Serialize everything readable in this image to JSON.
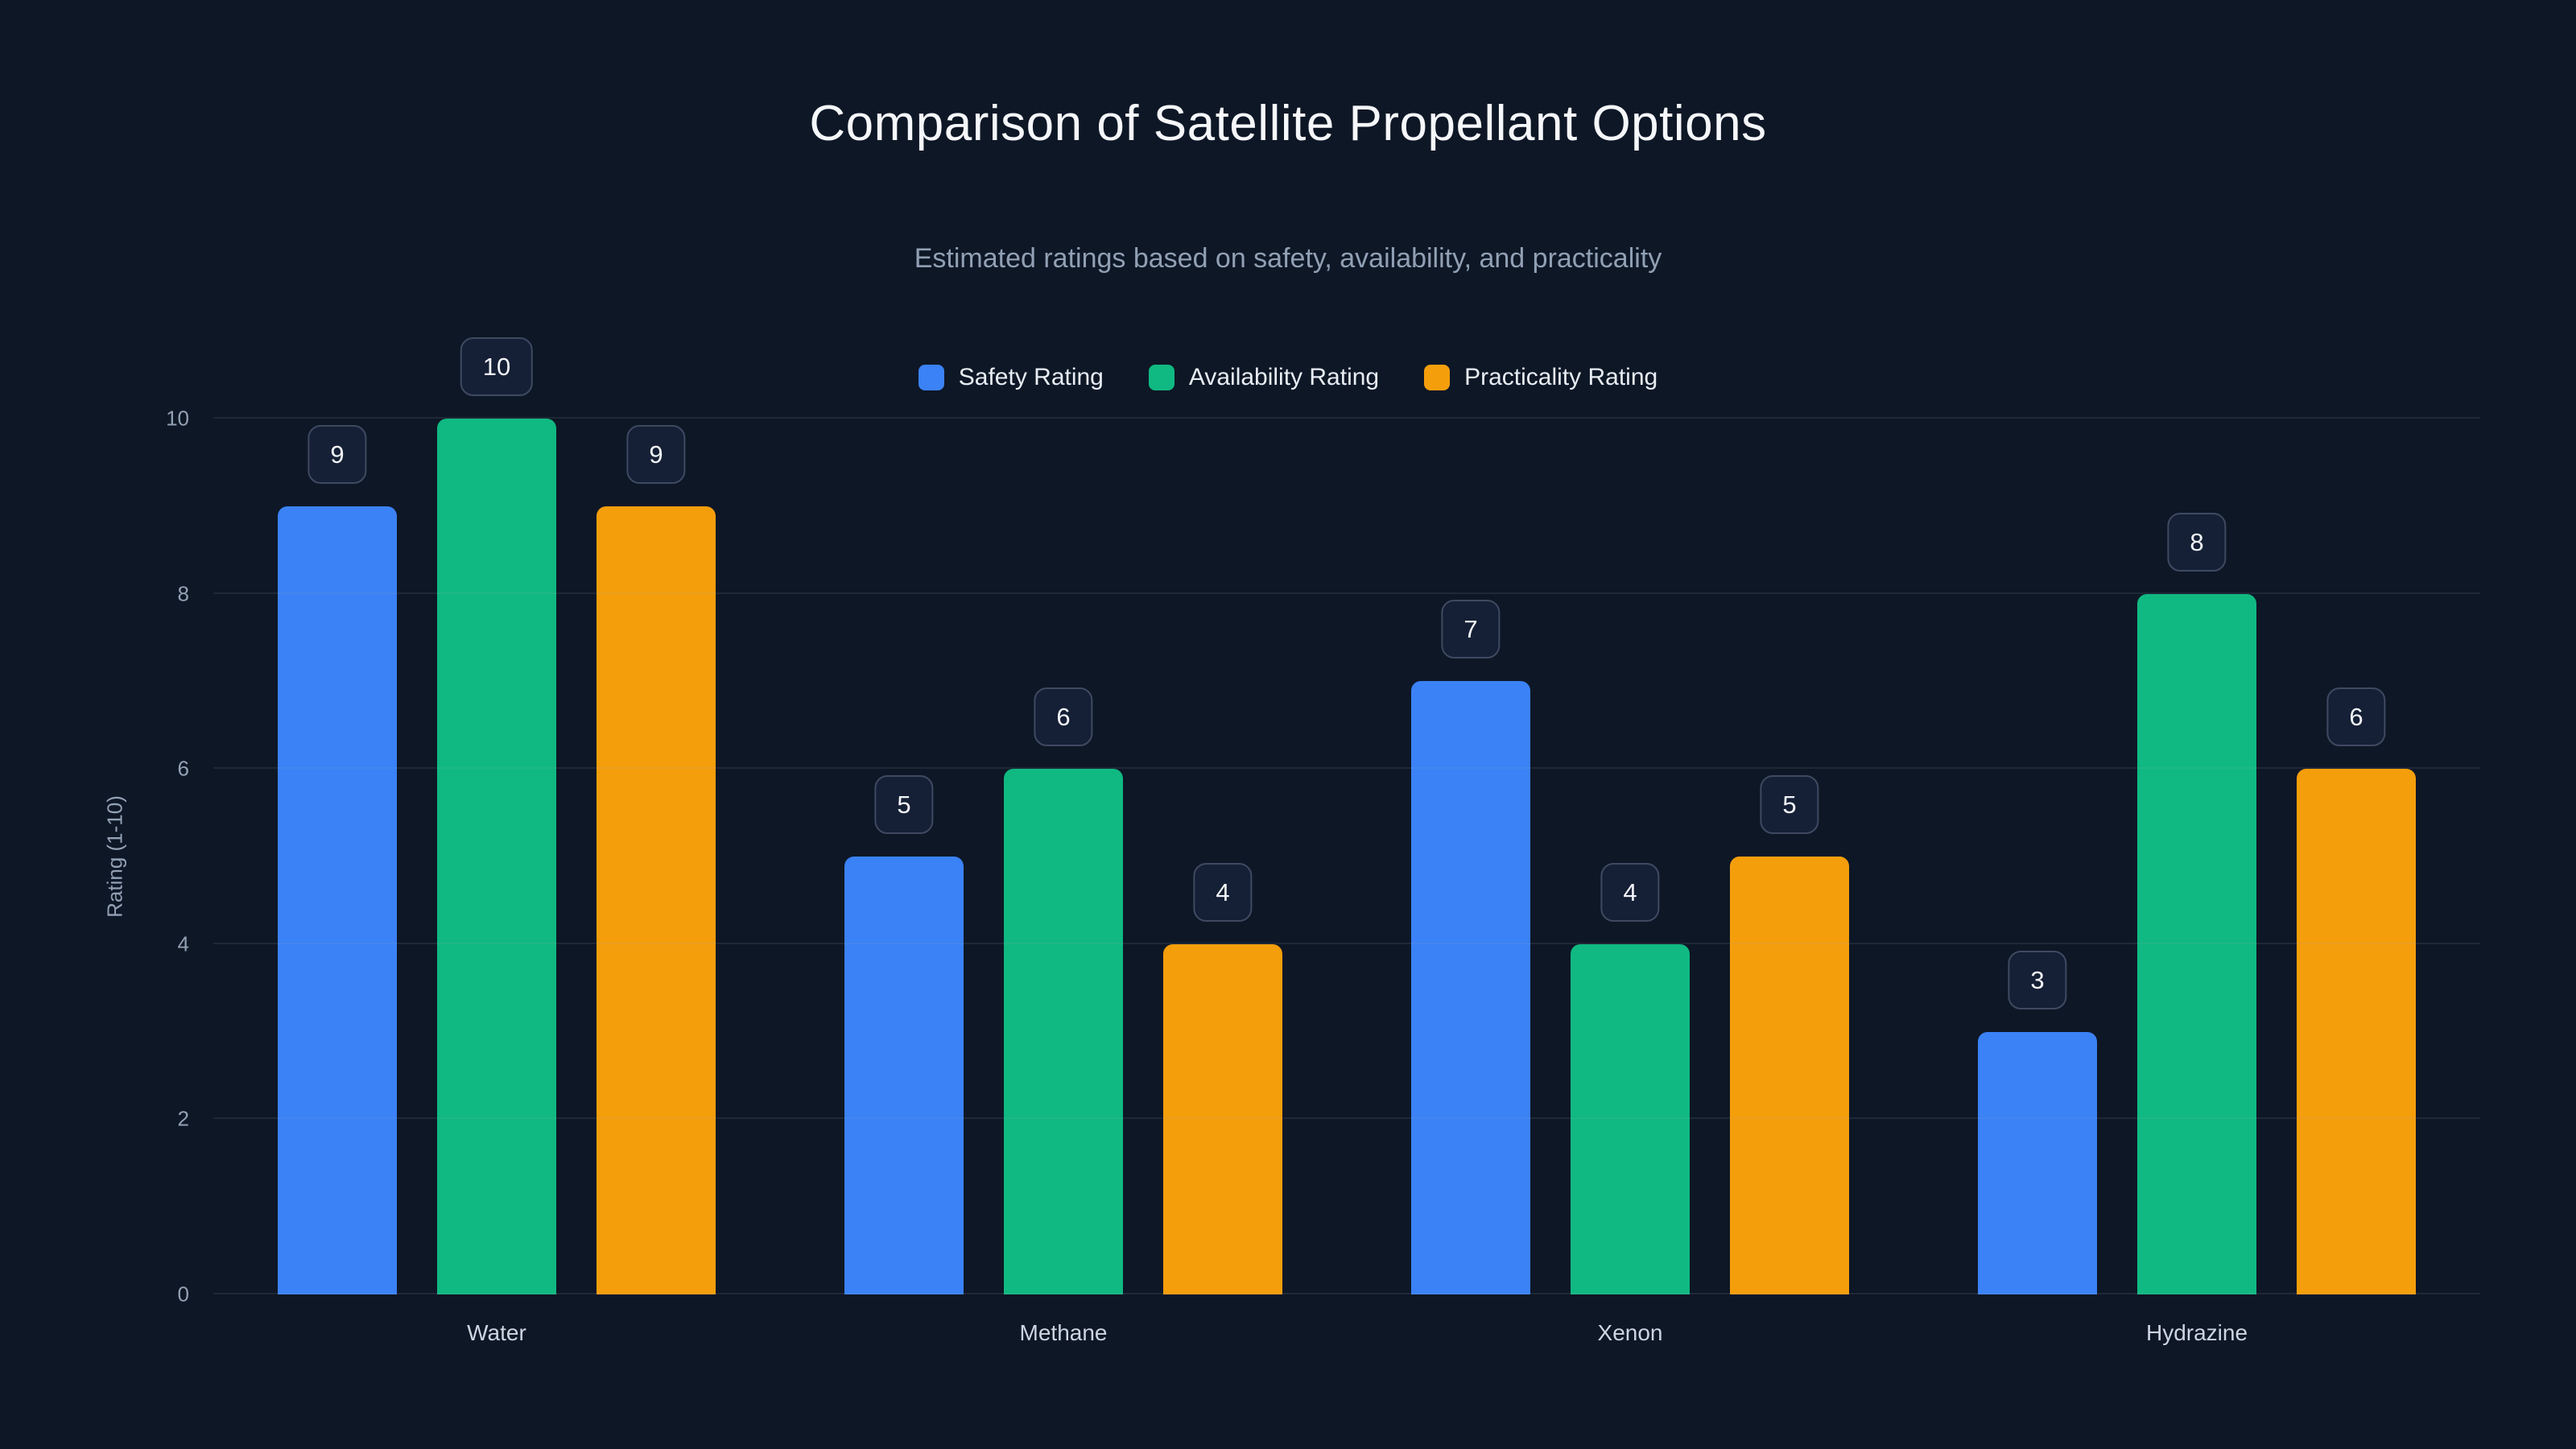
{
  "chart": {
    "title": "Comparison of Satellite Propellant Options",
    "subtitle": "Estimated ratings based on safety, availability, and practicality",
    "ylabel": "Rating (1-10)"
  },
  "chart_data": {
    "type": "bar",
    "title": "Comparison of Satellite Propellant Options",
    "subtitle": "Estimated ratings based on safety, availability, and practicality",
    "categories": [
      "Water",
      "Methane",
      "Xenon",
      "Hydrazine"
    ],
    "series": [
      {
        "name": "Safety Rating",
        "color": "#3b82f6",
        "values": [
          9,
          5,
          7,
          3
        ]
      },
      {
        "name": "Availability Rating",
        "color": "#10b981",
        "values": [
          10,
          6,
          4,
          8
        ]
      },
      {
        "name": "Practicality Rating",
        "color": "#f59e0b",
        "values": [
          9,
          4,
          5,
          6
        ]
      }
    ],
    "xlabel": "",
    "ylabel": "Rating (1-10)",
    "ylim": [
      0,
      10
    ],
    "yticks": [
      0,
      2,
      4,
      6,
      8,
      10
    ],
    "grid": "horizontal",
    "legend_position": "top",
    "data_labels": "pill-above-bar",
    "background": "#0e1726"
  }
}
